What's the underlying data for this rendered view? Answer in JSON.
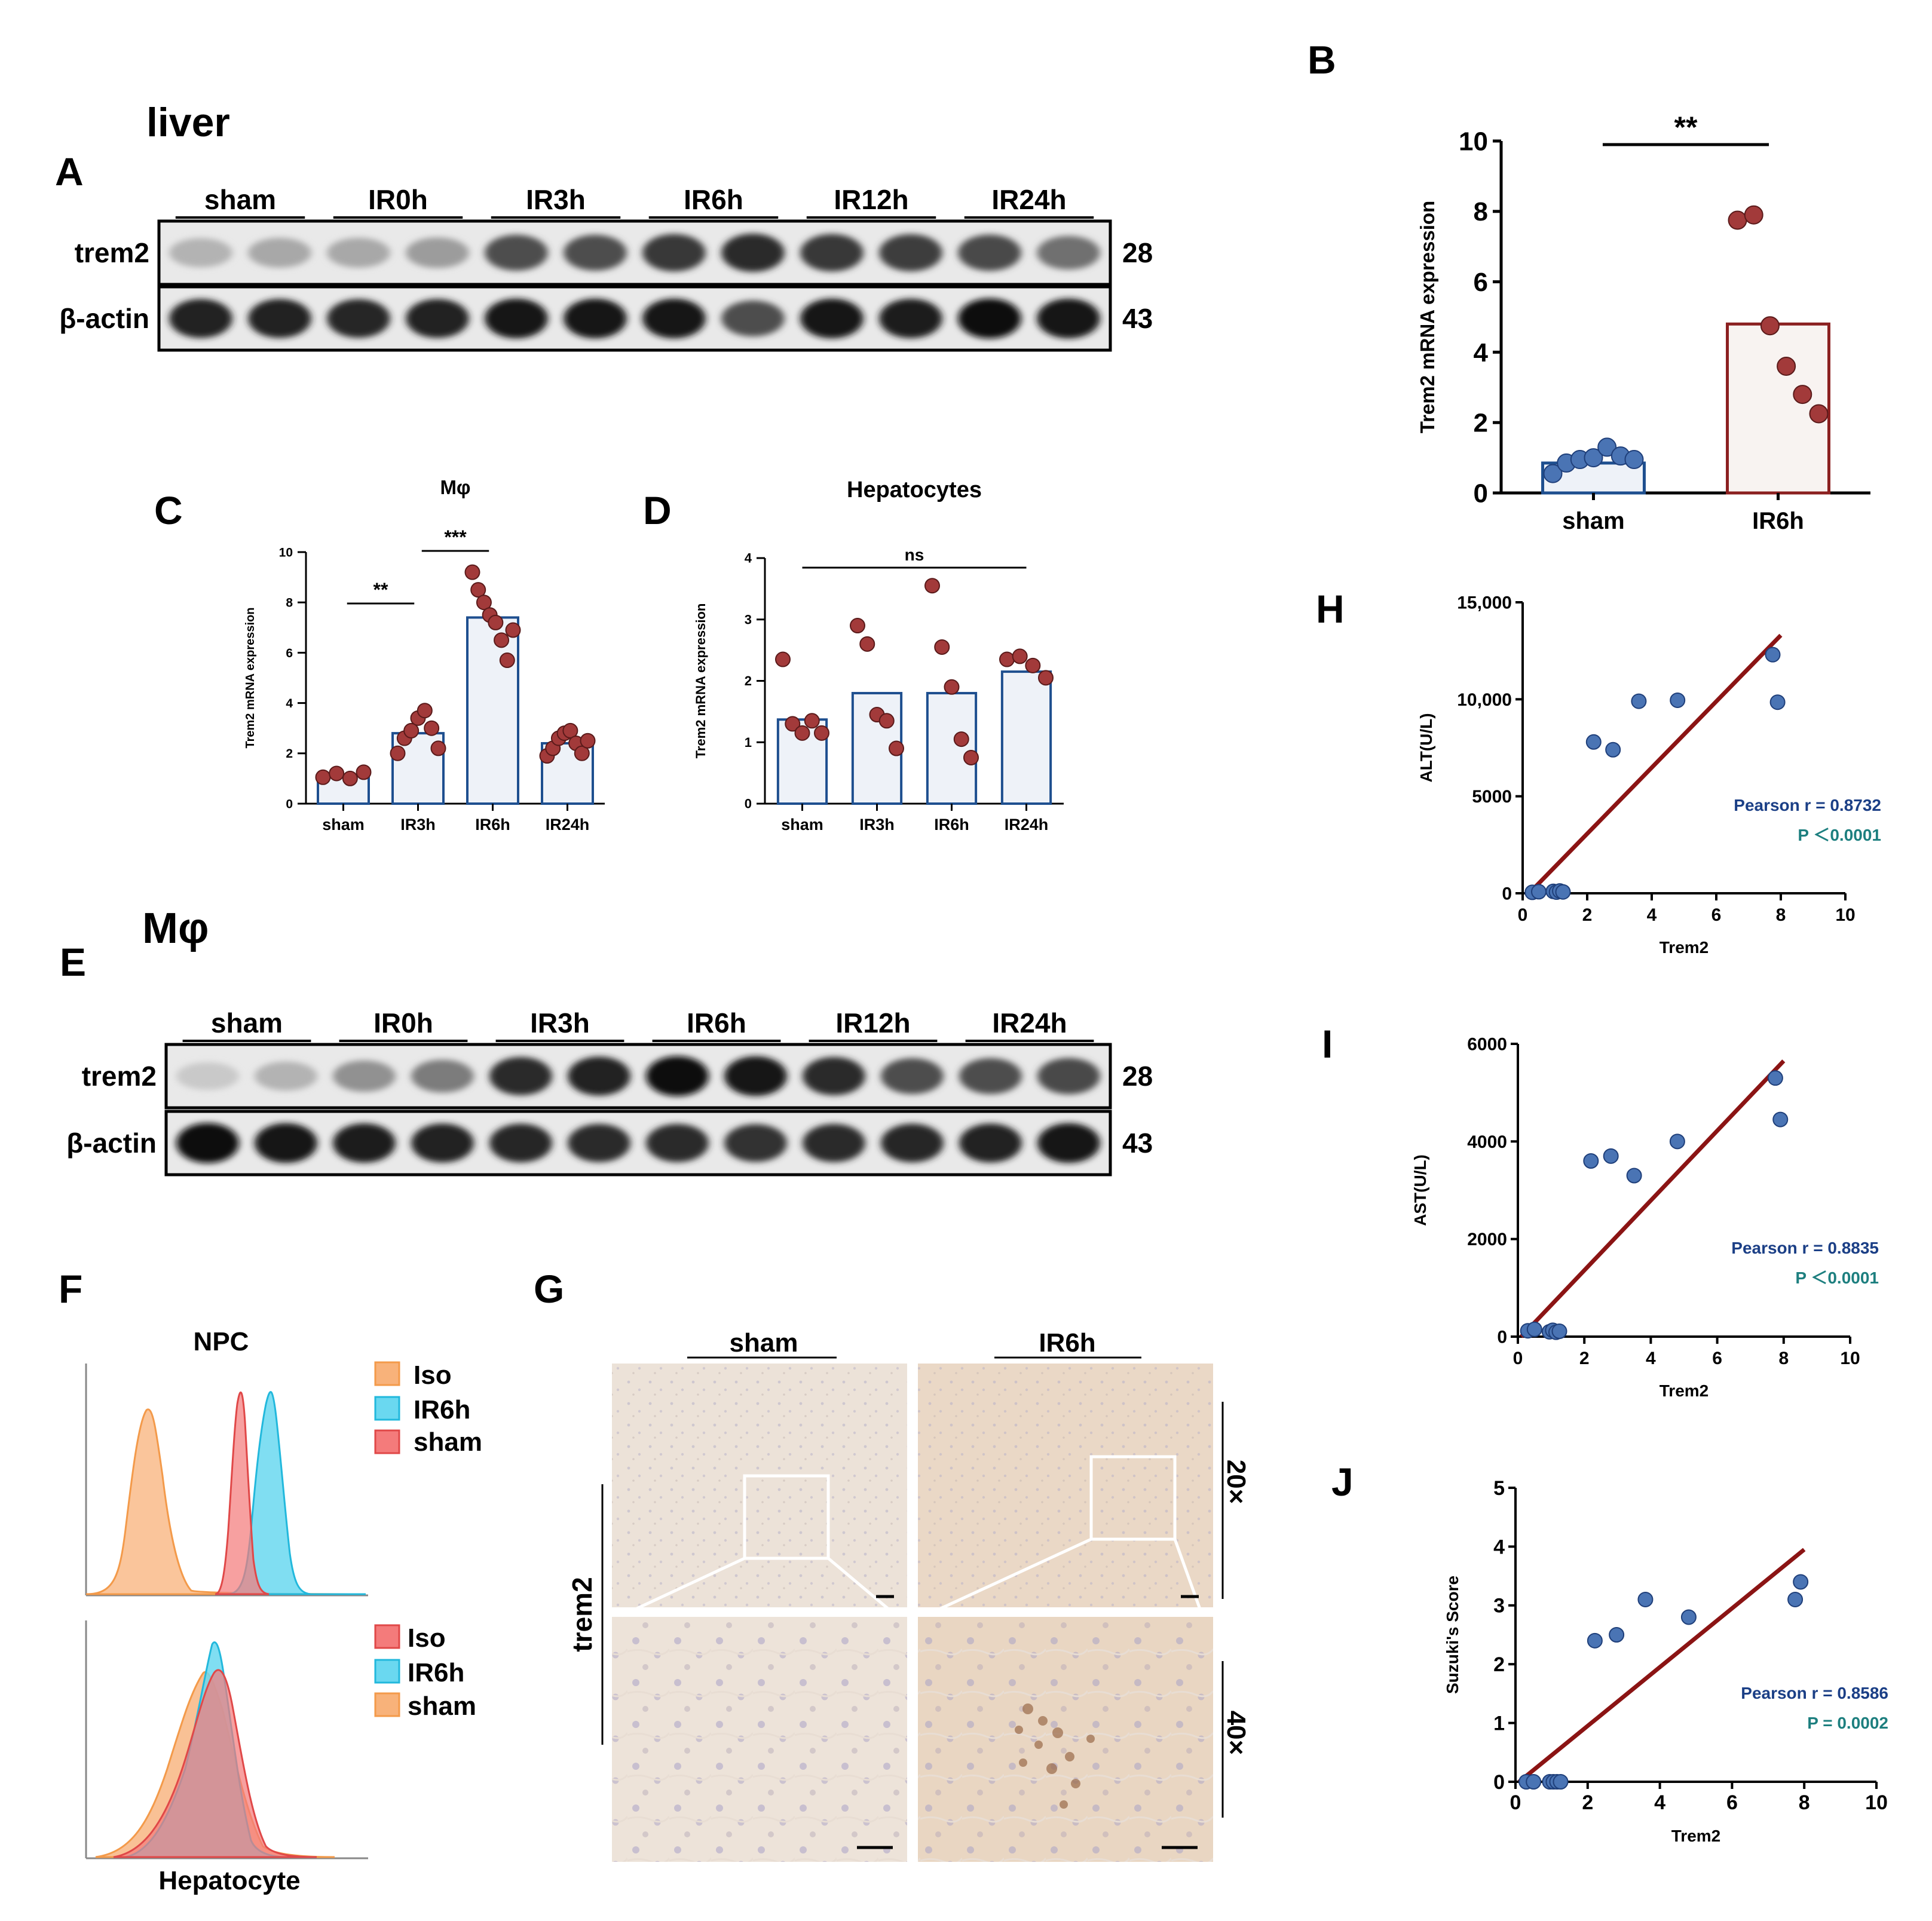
{
  "panel_letters": {
    "A": "A",
    "B": "B",
    "C": "C",
    "D": "D",
    "E": "E",
    "F": "F",
    "G": "G",
    "H": "H",
    "I": "I",
    "J": "J"
  },
  "colors": {
    "blue_fill": "#4a74b4",
    "blue_edge": "#1f3f7a",
    "red_fill": "#a23a3a",
    "red_edge": "#5a1a1a",
    "bar_fill": "#eef2f8",
    "bar_edge": "#1e4f8f",
    "ir_bar_fill": "#f8f3f1",
    "ir_bar_edge": "#8b2020",
    "fit_line": "#8b1414",
    "pearson_text": "#1b3f86",
    "p_text": "#1d7f7f",
    "iso_orange": "#f6a55a",
    "ir6h_cyan": "#2fc7e8",
    "sham_red": "#f06a6a"
  },
  "panelA": {
    "title": "liver",
    "groups": [
      "sham",
      "IR0h",
      "IR3h",
      "IR6h",
      "IR12h",
      "IR24h"
    ],
    "row_labels": [
      "trem2",
      "β-actin"
    ],
    "kda": [
      "28",
      "43"
    ],
    "band_intensity_trem2": [
      0.25,
      0.3,
      0.3,
      0.35,
      0.7,
      0.7,
      0.8,
      0.85,
      0.8,
      0.78,
      0.72,
      0.55
    ],
    "band_intensity_actin": [
      0.9,
      0.9,
      0.88,
      0.9,
      0.95,
      0.95,
      0.95,
      0.7,
      0.95,
      0.93,
      0.97,
      0.95
    ]
  },
  "panelE": {
    "title": "Mφ",
    "groups": [
      "sham",
      "IR0h",
      "IR3h",
      "IR6h",
      "IR12h",
      "IR24h"
    ],
    "row_labels": [
      "trem2",
      "β-actin"
    ],
    "kda": [
      "28",
      "43"
    ],
    "band_intensity_trem2": [
      0.15,
      0.25,
      0.4,
      0.5,
      0.85,
      0.9,
      0.97,
      0.95,
      0.85,
      0.7,
      0.7,
      0.72
    ],
    "band_intensity_actin": [
      0.97,
      0.95,
      0.92,
      0.9,
      0.88,
      0.85,
      0.85,
      0.82,
      0.85,
      0.88,
      0.9,
      0.95
    ]
  },
  "panelF": {
    "title": "NPC",
    "xlabel": "Hepatocyte",
    "top_legend": [
      "Iso",
      "IR6h",
      "sham"
    ],
    "bottom_legend": [
      "Iso",
      "IR6h",
      "sham"
    ]
  },
  "panelG": {
    "groups": [
      "sham",
      "IR6h"
    ],
    "row_label": "trem2",
    "magnifications": [
      "20×",
      "40×"
    ]
  },
  "chart_data": [
    {
      "id": "B",
      "type": "bar",
      "title": "",
      "categories": [
        "sham",
        "IR6h"
      ],
      "values": [
        0.85,
        4.8
      ],
      "ylabel": "Trem2 mRNA expression",
      "xlabel": "",
      "ylim": [
        0,
        10
      ],
      "yticks": [
        "0",
        "2",
        "4",
        "6",
        "8",
        "10"
      ],
      "points": [
        [
          0.55,
          0.85,
          0.95,
          1.0,
          1.3,
          1.05,
          0.95
        ],
        [
          7.75,
          7.9,
          4.75,
          3.6,
          2.8,
          2.25
        ]
      ],
      "significance": "**"
    },
    {
      "id": "C",
      "type": "bar",
      "title": "Mφ",
      "categories": [
        "sham",
        "IR3h",
        "IR6h",
        "IR24h"
      ],
      "values": [
        1.1,
        2.8,
        7.4,
        2.4
      ],
      "ylabel": "Trem2 mRNA expression",
      "xlabel": "",
      "ylim": [
        0,
        10
      ],
      "yticks": [
        "0",
        "2",
        "4",
        "6",
        "8",
        "10"
      ],
      "points": [
        [
          1.05,
          1.2,
          1.0,
          1.25
        ],
        [
          2.0,
          2.6,
          2.9,
          3.4,
          3.7,
          3.0,
          2.2
        ],
        [
          9.2,
          8.5,
          8.0,
          7.5,
          7.2,
          6.5,
          5.7,
          6.9
        ],
        [
          1.9,
          2.2,
          2.6,
          2.8,
          2.9,
          2.4,
          2.0,
          2.5
        ]
      ],
      "significance": [
        {
          "from": 0,
          "to": 1,
          "label": "**"
        },
        {
          "from": 1,
          "to": 2,
          "label": "***"
        }
      ]
    },
    {
      "id": "D",
      "type": "bar",
      "title": "Hepatocytes",
      "categories": [
        "sham",
        "IR3h",
        "IR6h",
        "IR24h"
      ],
      "values": [
        1.37,
        1.8,
        1.8,
        2.15
      ],
      "ylabel": "Trem2 mRNA expression",
      "xlabel": "",
      "ylim": [
        0,
        4
      ],
      "yticks": [
        "0",
        "1",
        "2",
        "3",
        "4"
      ],
      "points": [
        [
          2.35,
          1.3,
          1.15,
          1.35,
          1.15
        ],
        [
          2.9,
          2.6,
          1.45,
          1.35,
          0.9
        ],
        [
          3.55,
          2.55,
          1.9,
          1.05,
          0.75
        ],
        [
          2.35,
          2.4,
          2.25,
          2.05
        ]
      ],
      "significance": [
        {
          "from": 0,
          "to": 3,
          "label": "ns"
        }
      ]
    },
    {
      "id": "H",
      "type": "scatter",
      "xlabel": "Trem2",
      "ylabel": "ALT(U/L)",
      "xlim": [
        0,
        10
      ],
      "ylim": [
        0,
        15000
      ],
      "xticks": [
        "0",
        "2",
        "4",
        "6",
        "8",
        "10"
      ],
      "yticks": [
        "0",
        "5000",
        "10,000",
        "15,000"
      ],
      "x": [
        0.3,
        0.5,
        0.95,
        1.05,
        1.15,
        1.25,
        2.2,
        2.8,
        3.6,
        4.8,
        7.75,
        7.9
      ],
      "y": [
        50,
        80,
        100,
        60,
        120,
        70,
        7800,
        7400,
        9900,
        9950,
        12300,
        9850
      ],
      "fit": [
        [
          0.2,
          0
        ],
        [
          8.0,
          13300
        ]
      ],
      "pearson": "Pearson r = 0.8732",
      "p_value": "P ＜0.0001"
    },
    {
      "id": "I",
      "type": "scatter",
      "xlabel": "Trem2",
      "ylabel": "AST(U/L)",
      "xlim": [
        0,
        10
      ],
      "ylim": [
        0,
        6000
      ],
      "xticks": [
        "0",
        "2",
        "4",
        "6",
        "8",
        "10"
      ],
      "yticks": [
        "0",
        "2000",
        "4000",
        "6000"
      ],
      "x": [
        0.3,
        0.5,
        0.95,
        1.05,
        1.15,
        1.25,
        2.2,
        2.8,
        3.5,
        4.8,
        7.75,
        7.9
      ],
      "y": [
        120,
        150,
        100,
        130,
        90,
        110,
        3600,
        3700,
        3300,
        4000,
        5300,
        4450
      ],
      "fit": [
        [
          0.1,
          0
        ],
        [
          8.0,
          5650
        ]
      ],
      "pearson": "Pearson r = 0.8835",
      "p_value": "P ＜0.0001"
    },
    {
      "id": "J",
      "type": "scatter",
      "xlabel": "Trem2",
      "ylabel": "Suzuki's Score",
      "xlim": [
        0,
        10
      ],
      "ylim": [
        0,
        5
      ],
      "xticks": [
        "0",
        "2",
        "4",
        "6",
        "8",
        "10"
      ],
      "yticks": [
        "0",
        "1",
        "2",
        "3",
        "4",
        "5"
      ],
      "x": [
        0.3,
        0.5,
        0.95,
        1.05,
        1.15,
        1.25,
        2.2,
        2.8,
        3.6,
        4.8,
        7.75,
        7.9
      ],
      "y": [
        0,
        0,
        0,
        0,
        0,
        0,
        2.4,
        2.5,
        3.1,
        2.8,
        3.1,
        3.4
      ],
      "fit": [
        [
          0.1,
          0
        ],
        [
          8.0,
          3.95
        ]
      ],
      "pearson": "Pearson r = 0.8586",
      "p_value": "P = 0.0002"
    }
  ]
}
